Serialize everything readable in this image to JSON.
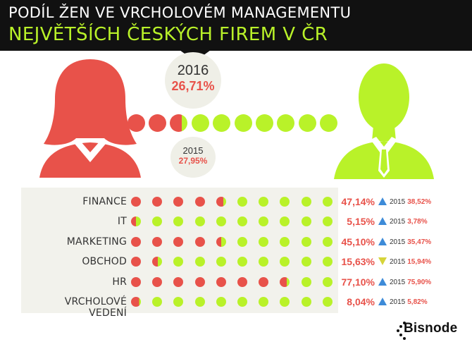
{
  "header": {
    "line1": "PODÍL ŽEN VE VRCHOLOVÉM MANAGEMENTU",
    "line2": "NEJVĚTŠÍCH ČESKÝCH FIREM  V ČR"
  },
  "colors": {
    "women": "#e8524a",
    "men": "#b9f229",
    "increase": "#3d8bd8",
    "decrease": "#d6d43a"
  },
  "icons": {
    "women": "woman-icon",
    "men": "man-icon",
    "logo": "bisnode-logo"
  },
  "overall": {
    "year_current": "2016",
    "value_current_label": "26,71%",
    "value_current": 26.71,
    "year_previous": "2015",
    "value_previous_label": "27,95%",
    "value_previous": 27.95
  },
  "chart_data": {
    "type": "table",
    "dots_per_row": 10,
    "rows": [
      {
        "category": "FINANCE",
        "value_2016": 47.14,
        "label_2016": "47,14%",
        "trend": "up",
        "year_prev": "2015",
        "value_2015": 38.52,
        "label_2015": "38,52%"
      },
      {
        "category": "IT",
        "value_2016": 5.15,
        "label_2016": "5,15%",
        "trend": "up",
        "year_prev": "2015",
        "value_2015": 3.78,
        "label_2015": "3,78%"
      },
      {
        "category": "MARKETING",
        "value_2016": 45.1,
        "label_2016": "45,10%",
        "trend": "up",
        "year_prev": "2015",
        "value_2015": 35.47,
        "label_2015": "35,47%"
      },
      {
        "category": "OBCHOD",
        "value_2016": 15.63,
        "label_2016": "15,63%",
        "trend": "down",
        "year_prev": "2015",
        "value_2015": 15.94,
        "label_2015": "15,94%"
      },
      {
        "category": "HR",
        "value_2016": 77.1,
        "label_2016": "77,10%",
        "trend": "up",
        "year_prev": "2015",
        "value_2015": 75.9,
        "label_2015": "75,90%"
      },
      {
        "category": "VRCHOLOVÉ VEDENÍ",
        "value_2016": 8.04,
        "label_2016": "8,04%",
        "trend": "up",
        "year_prev": "2015",
        "value_2015": 5.82,
        "label_2015": "5,82%"
      }
    ]
  },
  "logo": {
    "text": "Bisnode"
  }
}
